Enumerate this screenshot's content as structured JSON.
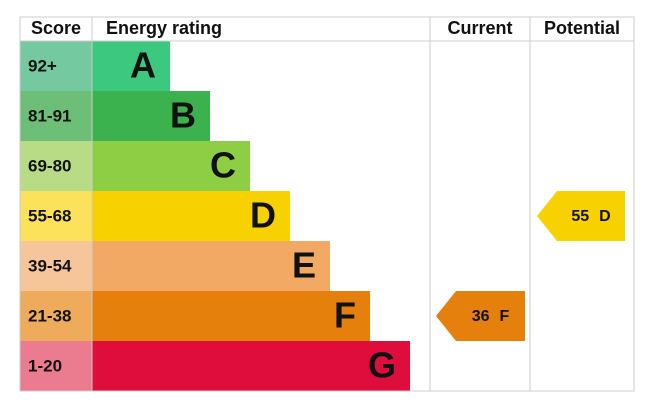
{
  "headers": {
    "score": "Score",
    "rating": "Energy rating",
    "current": "Current",
    "potential": "Potential"
  },
  "rows": [
    {
      "score": "92+",
      "letter": "A",
      "bar_color": "#3cc97f",
      "score_color": "#75c9a1"
    },
    {
      "score": "81-91",
      "letter": "B",
      "bar_color": "#3cb24e",
      "score_color": "#6dbf77"
    },
    {
      "score": "69-80",
      "letter": "C",
      "bar_color": "#8ece45",
      "score_color": "#b8dc86"
    },
    {
      "score": "55-68",
      "letter": "D",
      "bar_color": "#f8d100",
      "score_color": "#fbe25a"
    },
    {
      "score": "39-54",
      "letter": "E",
      "bar_color": "#f2a963",
      "score_color": "#f6c59a"
    },
    {
      "score": "21-38",
      "letter": "F",
      "bar_color": "#e5800d",
      "score_color": "#eeab5b"
    },
    {
      "score": "1-20",
      "letter": "G",
      "bar_color": "#de0d3b",
      "score_color": "#eb7c8f"
    }
  ],
  "current": {
    "score": 36,
    "rating": "F"
  },
  "potential": {
    "score": 55,
    "rating": "D"
  }
}
